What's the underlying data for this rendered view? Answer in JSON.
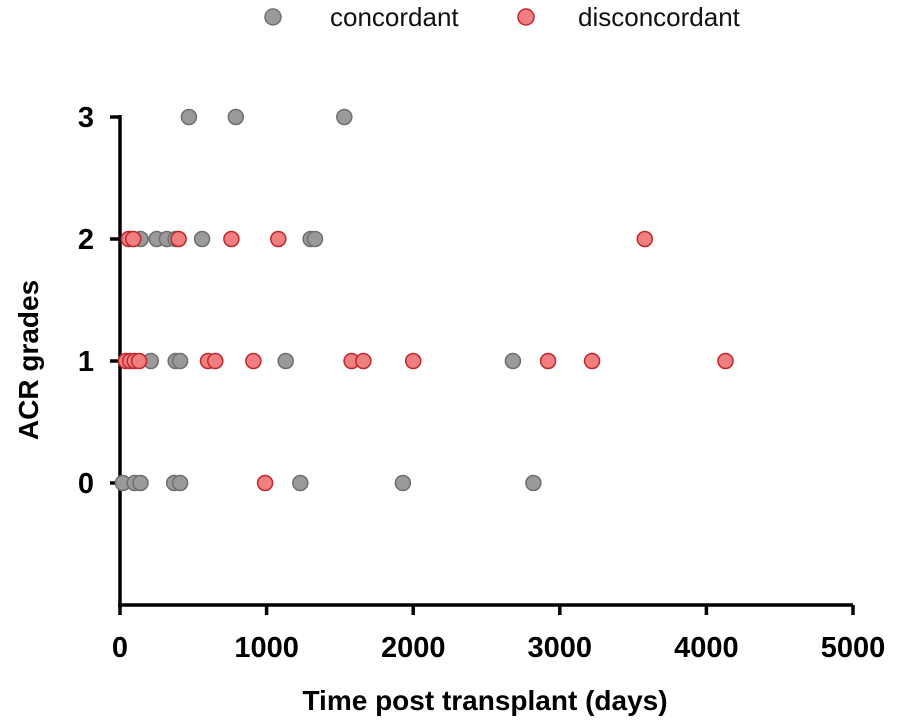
{
  "chart_data": {
    "type": "scatter",
    "title": "",
    "xlabel": "Time post transplant (days)",
    "ylabel": "ACR grades",
    "xlim": [
      0,
      5000
    ],
    "ylim": [
      -1,
      3
    ],
    "xticks": [
      "0",
      "1000",
      "2000",
      "3000",
      "4000",
      "5000"
    ],
    "yticks": [
      "0",
      "1",
      "2",
      "3"
    ],
    "grid": false,
    "legend_position": "top",
    "series": [
      {
        "name": "concordant",
        "color": "#9a9a9a",
        "points": [
          [
            470,
            3
          ],
          [
            790,
            3
          ],
          [
            1530,
            3
          ],
          [
            140,
            2
          ],
          [
            250,
            2
          ],
          [
            320,
            2
          ],
          [
            380,
            2
          ],
          [
            560,
            2
          ],
          [
            1300,
            2
          ],
          [
            1330,
            2
          ],
          [
            210,
            1
          ],
          [
            380,
            1
          ],
          [
            410,
            1
          ],
          [
            1130,
            1
          ],
          [
            2680,
            1
          ],
          [
            20,
            0
          ],
          [
            100,
            0
          ],
          [
            140,
            0
          ],
          [
            370,
            0
          ],
          [
            410,
            0
          ],
          [
            1230,
            0
          ],
          [
            1930,
            0
          ],
          [
            2820,
            0
          ]
        ]
      },
      {
        "name": "disconcordant",
        "color": "#f08080",
        "points": [
          [
            3580,
            2
          ],
          [
            60,
            2
          ],
          [
            90,
            2
          ],
          [
            400,
            2
          ],
          [
            760,
            2
          ],
          [
            1080,
            2
          ],
          [
            40,
            1
          ],
          [
            70,
            1
          ],
          [
            100,
            1
          ],
          [
            130,
            1
          ],
          [
            600,
            1
          ],
          [
            650,
            1
          ],
          [
            910,
            1
          ],
          [
            1580,
            1
          ],
          [
            1660,
            1
          ],
          [
            2000,
            1
          ],
          [
            2920,
            1
          ],
          [
            3220,
            1
          ],
          [
            4130,
            1
          ],
          [
            990,
            0
          ]
        ]
      }
    ]
  }
}
